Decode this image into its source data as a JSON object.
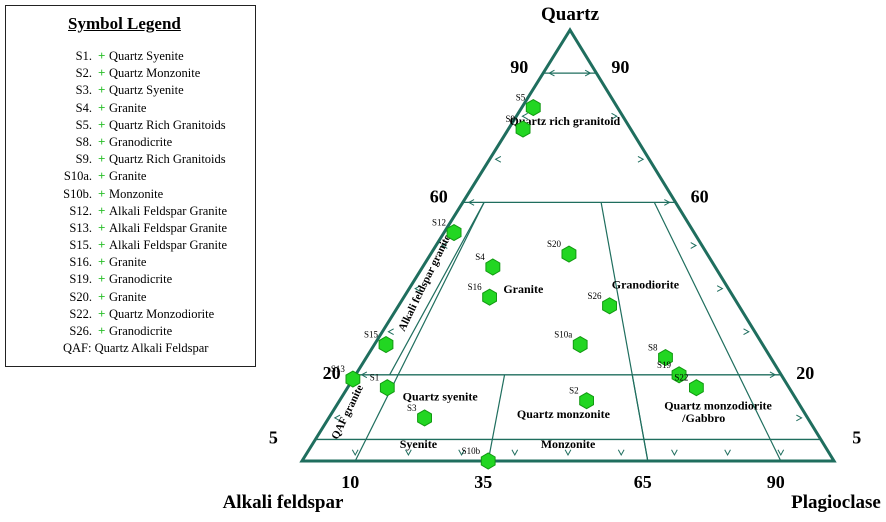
{
  "legend": {
    "title": "Symbol Legend",
    "items": [
      {
        "code": "S1.",
        "name": "Quartz Syenite"
      },
      {
        "code": "S2.",
        "name": "Quartz Monzonite"
      },
      {
        "code": "S3.",
        "name": "Quartz Syenite"
      },
      {
        "code": "S4.",
        "name": "Granite"
      },
      {
        "code": "S5.",
        "name": "Quartz Rich Granitoids"
      },
      {
        "code": "S8.",
        "name": "Granodicrite"
      },
      {
        "code": "S9.",
        "name": "Quartz Rich Granitoids"
      },
      {
        "code": "S10a.",
        "name": "Granite"
      },
      {
        "code": "S10b.",
        "name": "Monzonite"
      },
      {
        "code": "S12.",
        "name": "Alkali Feldspar Granite"
      },
      {
        "code": "S13.",
        "name": "Alkali Feldspar Granite"
      },
      {
        "code": "S15.",
        "name": "Alkali Feldspar Granite"
      },
      {
        "code": "S16.",
        "name": "Granite"
      },
      {
        "code": "S19.",
        "name": "Granodicrite"
      },
      {
        "code": "S20.",
        "name": "Granite"
      },
      {
        "code": "S22.",
        "name": "Quartz Monzodiorite"
      },
      {
        "code": "S26.",
        "name": "Granodicrite"
      }
    ],
    "qaf_note": "QAF:  Quartz Alkali Feldspar",
    "plus_symbol": "+",
    "plus_color": "#2bbf2b"
  },
  "diagram": {
    "apex_labels": {
      "top": "Quartz",
      "left": "Alkali feldspar",
      "right": "Plagioclase"
    },
    "q_ticks": [
      {
        "q": 90,
        "left": "90",
        "right": "90"
      },
      {
        "q": 60,
        "left": "60",
        "right": "60"
      },
      {
        "q": 20,
        "left": "20",
        "right": "20"
      },
      {
        "q": 5,
        "left": "5",
        "right": "5"
      }
    ],
    "p_ticks": [
      {
        "p": 10,
        "label": "10"
      },
      {
        "p": 35,
        "label": "35"
      },
      {
        "p": 65,
        "label": "65"
      },
      {
        "p": 90,
        "label": "90"
      }
    ],
    "fields": [
      {
        "name": "Quartz rich granitoid",
        "q": 78,
        "p": 46
      },
      {
        "name": "Alkali feldspar granite",
        "q": 41,
        "p": 5,
        "rotated": true
      },
      {
        "name": "Granite",
        "q": 39,
        "p": 36
      },
      {
        "name": "Granodiorite",
        "q": 40,
        "p": 74
      },
      {
        "name": "QAF granite",
        "q": 11,
        "p": 4,
        "rotated": true
      },
      {
        "name": "Quartz syenite",
        "q": 14,
        "p": 22
      },
      {
        "name": "Quartz monzonite",
        "q": 10,
        "p": 49
      },
      {
        "name": "Quartz monzodiorite",
        "q": 12,
        "p": 82
      },
      {
        "name": "/Gabbro",
        "q": 9,
        "p": 78
      },
      {
        "name": "Syenite",
        "q": 3,
        "p": 21
      },
      {
        "name": "Monzonite",
        "q": 3,
        "p": 50
      }
    ],
    "samples": [
      {
        "id": "S5",
        "q": 82,
        "p": 12
      },
      {
        "id": "S9",
        "q": 77,
        "p": 12
      },
      {
        "id": "S12",
        "q": 53,
        "p": 4
      },
      {
        "id": "S4",
        "q": 45,
        "p": 24
      },
      {
        "id": "S20",
        "q": 48,
        "p": 50
      },
      {
        "id": "S16",
        "q": 38,
        "p": 26
      },
      {
        "id": "S26",
        "q": 36,
        "p": 62
      },
      {
        "id": "S15",
        "q": 27,
        "p": 3
      },
      {
        "id": "S10a",
        "q": 27,
        "p": 53
      },
      {
        "id": "S8",
        "q": 24,
        "p": 74
      },
      {
        "id": "S19",
        "q": 20,
        "p": 76
      },
      {
        "id": "S22",
        "q": 17,
        "p": 79
      },
      {
        "id": "S13",
        "q": 19,
        "p": 0
      },
      {
        "id": "S1",
        "q": 17,
        "p": 9
      },
      {
        "id": "S2",
        "q": 14,
        "p": 54
      },
      {
        "id": "S3",
        "q": 10,
        "p": 20
      },
      {
        "id": "S10b",
        "q": 0,
        "p": 35
      }
    ],
    "line_color": "#1f6e5e",
    "marker_color": "#22d622",
    "marker_edge": "#119911"
  }
}
